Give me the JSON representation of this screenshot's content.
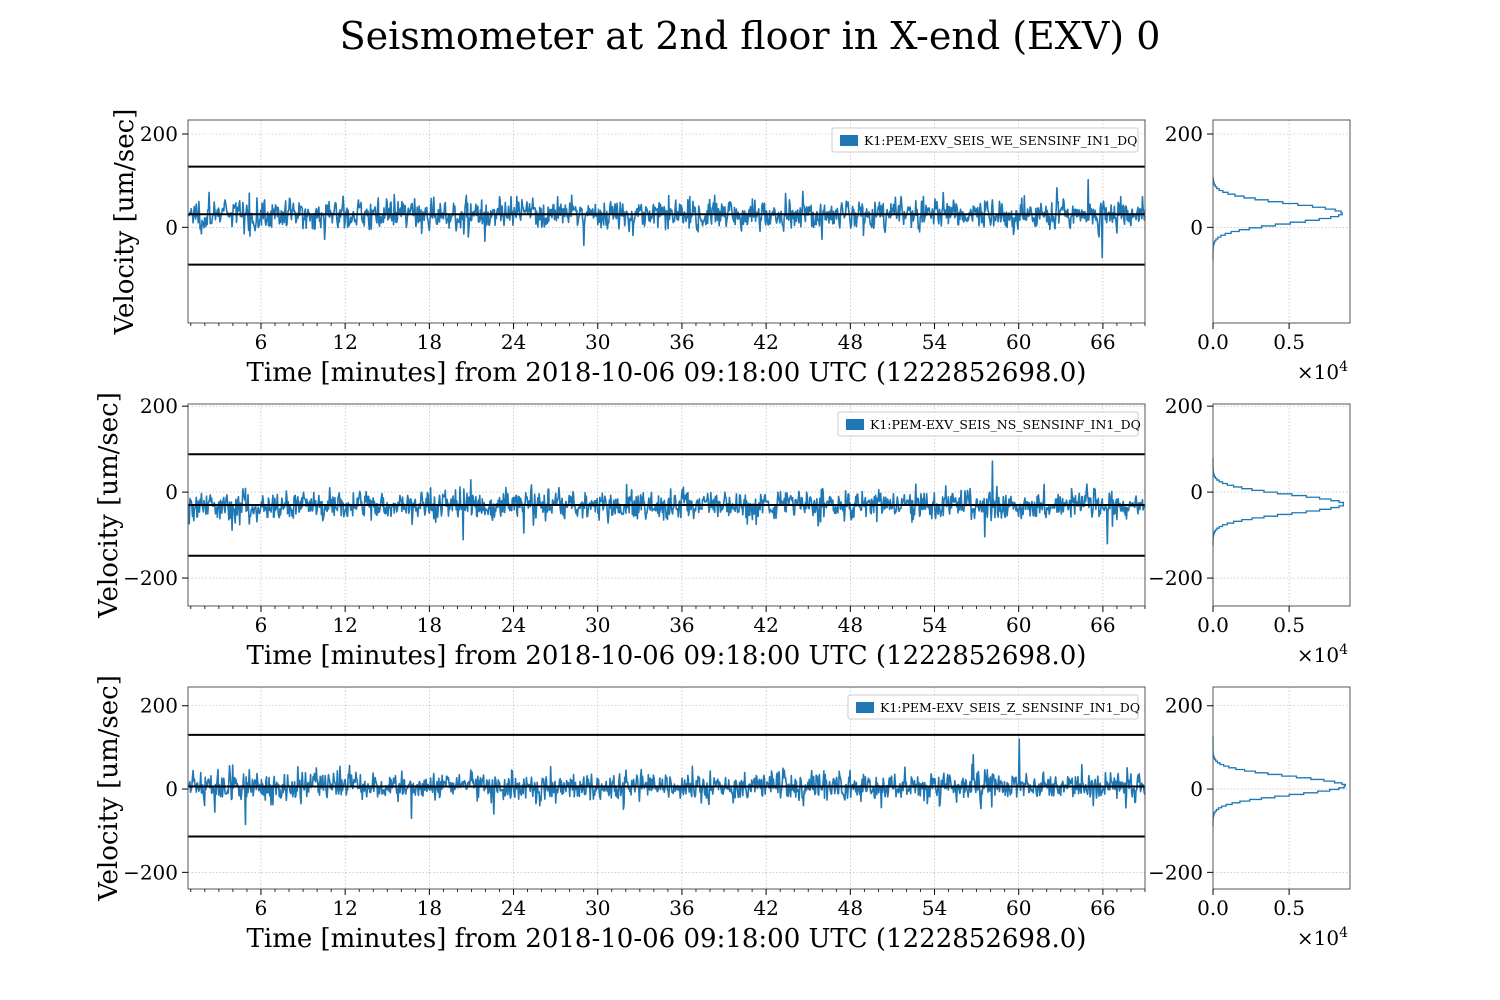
{
  "title": "Seismometer at 2nd floor in X-end (EXV) 0",
  "colors": {
    "series": "#1f77b4",
    "threshold": "#000000",
    "grid": "#b0b0b0"
  },
  "chart_data": [
    {
      "type": "line",
      "panel": 1,
      "series_name": "K1:PEM-EXV_SEIS_WE_SENSINF_IN1_DQ",
      "legend_placement": "top-right",
      "xlabel": "Time [minutes] from 2018-10-06 09:18:00 UTC (1222852698.0)",
      "ylabel": "Velocity [um/sec]",
      "xlim": [
        0.8,
        69
      ],
      "ylim": [
        -205,
        230
      ],
      "xticks": [
        6,
        12,
        18,
        24,
        30,
        36,
        42,
        48,
        54,
        60,
        66
      ],
      "yticks": [
        0,
        200
      ],
      "grid": true,
      "mean": 28,
      "std": 18,
      "min": -65,
      "max": 102,
      "threshold_lines": [
        130,
        28,
        -80
      ],
      "histogram": {
        "type": "histogram",
        "orientation": "horizontal",
        "xlim": [
          0,
          9000
        ],
        "xticks": [
          0.0,
          0.5
        ],
        "xtick_labels": [
          "0.0",
          "0.5"
        ],
        "x_multiplier": "×10",
        "x_exponent": "4",
        "yticks": [
          0,
          200
        ],
        "peak_count": 8500,
        "peak_value": 28
      }
    },
    {
      "type": "line",
      "panel": 2,
      "series_name": "K1:PEM-EXV_SEIS_NS_SENSINF_IN1_DQ",
      "legend_placement": "top-right",
      "xlabel": "Time [minutes] from 2018-10-06 09:18:00 UTC (1222852698.0)",
      "ylabel": "Velocity [um/sec]",
      "xlim": [
        0.8,
        69
      ],
      "ylim": [
        -265,
        205
      ],
      "xticks": [
        6,
        12,
        18,
        24,
        30,
        36,
        42,
        48,
        54,
        60,
        66
      ],
      "yticks": [
        -200,
        0,
        200
      ],
      "grid": true,
      "mean": -30,
      "std": 19,
      "min": -120,
      "max": 72,
      "threshold_lines": [
        88,
        -30,
        -148
      ],
      "histogram": {
        "type": "histogram",
        "orientation": "horizontal",
        "xlim": [
          0,
          9000
        ],
        "xticks": [
          0.0,
          0.5
        ],
        "xtick_labels": [
          "0.0",
          "0.5"
        ],
        "x_multiplier": "×10",
        "x_exponent": "4",
        "yticks": [
          -200,
          0,
          200
        ],
        "peak_count": 8600,
        "peak_value": -30
      }
    },
    {
      "type": "line",
      "panel": 3,
      "series_name": "K1:PEM-EXV_SEIS_Z_SENSINF_IN1_DQ",
      "legend_placement": "top-right",
      "xlabel": "Time [minutes] from 2018-10-06 09:18:00 UTC (1222852698.0)",
      "ylabel": "Velocity [um/sec]",
      "xlim": [
        0.8,
        69
      ],
      "ylim": [
        -240,
        245
      ],
      "xticks": [
        6,
        12,
        18,
        24,
        30,
        36,
        42,
        48,
        54,
        60,
        66
      ],
      "yticks": [
        -200,
        0,
        200
      ],
      "grid": true,
      "mean": 6,
      "std": 19,
      "min": -85,
      "max": 120,
      "threshold_lines": [
        130,
        6,
        -114
      ],
      "histogram": {
        "type": "histogram",
        "orientation": "horizontal",
        "xlim": [
          0,
          9000
        ],
        "xticks": [
          0.0,
          0.5
        ],
        "xtick_labels": [
          "0.0",
          "0.5"
        ],
        "x_multiplier": "×10",
        "x_exponent": "4",
        "yticks": [
          -200,
          0,
          200
        ],
        "peak_count": 8700,
        "peak_value": 6
      }
    }
  ]
}
